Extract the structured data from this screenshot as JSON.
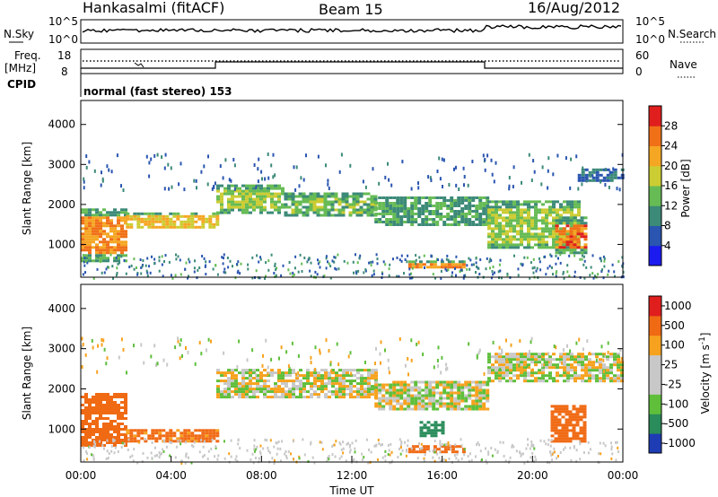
{
  "header": {
    "radar": "Hankasalmi (fitACF)",
    "beam": "Beam 15",
    "date": "16/Aug/2012"
  },
  "strips": {
    "nsky_label": "N.Sky",
    "nsearch_label": "N.Search",
    "noise_ticks": [
      "10^5",
      "10^0"
    ],
    "freq_label_1": "Freq.",
    "freq_label_2": "[MHz]",
    "freq_ticks": [
      "18",
      "8"
    ],
    "nave_label": "Nave",
    "nave_ticks": [
      "60",
      "0"
    ],
    "cpid_label": "CPID",
    "cpid_text": "normal (fast stereo) 153"
  },
  "chart_data": [
    {
      "type": "heatmap",
      "name": "power",
      "ylabel": "Slant Range [km]",
      "xlabel": "",
      "ylim": [
        180,
        4600
      ],
      "yticks": [
        "1000",
        "2000",
        "3000",
        "4000"
      ],
      "colorbar_label": "Power [dB]",
      "colorbar_ticks": [
        "4",
        "8",
        "12",
        "16",
        "20",
        "24",
        "28"
      ],
      "colorbar_colors": [
        "#1b1bf0",
        "#2a55b0",
        "#3c8a78",
        "#66bb55",
        "#cccc33",
        "#f5a623",
        "#f07018",
        "#e01e1e"
      ],
      "bands": [
        {
          "t0": 0.0,
          "t1": 2.0,
          "r": [
            600,
            1900
          ],
          "level": 24
        },
        {
          "t0": 2.0,
          "t1": 6.0,
          "r": [
            1400,
            1800
          ],
          "level": 20
        },
        {
          "t0": 6.0,
          "t1": 9.0,
          "r": [
            1800,
            2500
          ],
          "level": 16
        },
        {
          "t0": 9.0,
          "t1": 13.0,
          "r": [
            1700,
            2300
          ],
          "level": 14
        },
        {
          "t0": 13.0,
          "t1": 18.0,
          "r": [
            1500,
            2200
          ],
          "level": 12
        },
        {
          "t0": 14.5,
          "t1": 17.0,
          "r": [
            400,
            600
          ],
          "level": 24
        },
        {
          "t0": 18.0,
          "t1": 22.0,
          "r": [
            900,
            2100
          ],
          "level": 16
        },
        {
          "t0": 21.0,
          "t1": 22.3,
          "r": [
            800,
            1700
          ],
          "level": 26
        },
        {
          "t0": 22.0,
          "t1": 24.0,
          "r": [
            2600,
            2900
          ],
          "level": 8
        }
      ]
    },
    {
      "type": "heatmap",
      "name": "velocity",
      "ylabel": "Slant Range [km]",
      "xlabel": "Time UT",
      "ylim": [
        180,
        4600
      ],
      "xlim": [
        "00:00",
        "24:00"
      ],
      "xticks": [
        "00:00",
        "04:00",
        "08:00",
        "12:00",
        "16:00",
        "20:00",
        "00:00"
      ],
      "yticks": [
        "1000",
        "2000",
        "3000",
        "4000"
      ],
      "colorbar_label": "Velocity [m s^-1]",
      "colorbar_ticks": [
        "1000",
        "500",
        "100",
        "25",
        "-25",
        "-100",
        "-500",
        "-1000"
      ],
      "colorbar_colors": [
        "#1e3cb4",
        "#2a8c5a",
        "#5fbf3b",
        "#c8c8c8",
        "#c8c8c8",
        "#f7a21e",
        "#f06a14",
        "#e01e1e"
      ],
      "bands": [
        {
          "t0": 0.0,
          "t1": 2.0,
          "r": [
            600,
            1900
          ],
          "vel": -400
        },
        {
          "t0": 2.0,
          "t1": 6.0,
          "r": [
            700,
            1000
          ],
          "vel": -150
        },
        {
          "t0": 6.0,
          "t1": 13.0,
          "r": [
            1800,
            2500
          ],
          "vel": 0
        },
        {
          "t0": 13.0,
          "t1": 18.0,
          "r": [
            1500,
            2200
          ],
          "vel": 0
        },
        {
          "t0": 14.5,
          "t1": 17.0,
          "r": [
            400,
            600
          ],
          "vel": -400
        },
        {
          "t0": 15.0,
          "t1": 16.0,
          "r": [
            800,
            1200
          ],
          "vel": 400
        },
        {
          "t0": 18.0,
          "t1": 24.0,
          "r": [
            2200,
            2900
          ],
          "vel": 0
        },
        {
          "t0": 20.8,
          "t1": 22.3,
          "r": [
            700,
            1600
          ],
          "vel": -300
        }
      ]
    }
  ]
}
